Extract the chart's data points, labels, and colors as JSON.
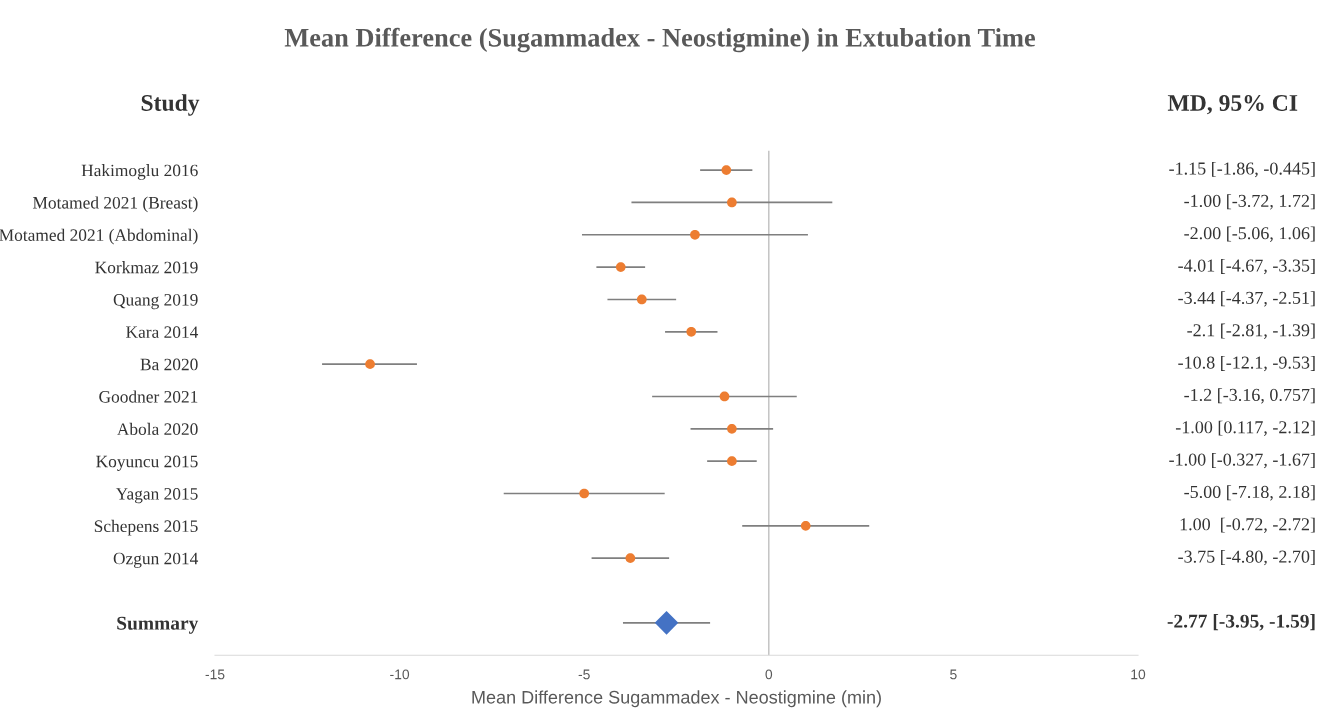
{
  "chart_data": {
    "type": "scatter",
    "orientation": "horizontal",
    "title": "Mean Difference (Sugammadex - Neostigmine) in Extubation Time",
    "xlabel": "Mean Difference Sugammadex - Neostigmine (min)",
    "categories": [
      "Hakimoglu 2016",
      "Motamed 2021 (Breast)",
      "Motamed 2021 (Abdominal)",
      "Korkmaz 2019",
      "Quang 2019",
      "Kara 2014",
      "Ba 2020",
      "Goodner 2021",
      "Abola 2020",
      "Koyuncu 2015",
      "Yagan 2015",
      "Schepens 2015",
      "Ozgun 2014",
      null,
      "Summary"
    ],
    "series": [
      {
        "color": "#ed7d31",
        "marker": "circle",
        "values": [
          -1.15,
          -1.0,
          -2.0,
          -4.01,
          -3.44,
          -2.1,
          -10.8,
          -1.2,
          -1.0,
          -1.0,
          -5.0,
          1.0,
          -3.75,
          null,
          null
        ],
        "errors": [
          [
            -1.86,
            -0.445
          ],
          [
            -3.72,
            1.72
          ],
          [
            -5.06,
            1.06
          ],
          [
            -4.67,
            -3.35
          ],
          [
            -4.37,
            -2.51
          ],
          [
            -2.81,
            -1.39
          ],
          [
            -12.1,
            -9.53
          ],
          [
            -3.16,
            0.757
          ],
          [
            -2.12,
            0.117
          ],
          [
            -1.67,
            -0.327
          ],
          [
            -7.18,
            -2.82
          ],
          [
            -0.72,
            2.72
          ],
          [
            -4.8,
            -2.7
          ],
          null,
          null
        ],
        "value_labels": [
          "-1.15 [-1.86, -0.445]",
          "-1.00 [-3.72, 1.72]",
          "-2.00 [-5.06, 1.06]",
          "-4.01 [-4.67, -3.35]",
          "-3.44 [-4.37, -2.51]",
          "-2.1 [-2.81, -1.39]",
          "-10.8 [-12.1, -9.53]",
          "-1.2 [-3.16, 0.757]",
          "-1.00 [0.117, -2.12]",
          "-1.00 [-0.327, -1.67]",
          "-5.00 [-7.18, 2.18]",
          "1.00  [-0.72, -2.72]",
          "-3.75 [-4.80, -2.70]",
          null,
          null
        ]
      },
      {
        "color": "#4472c4",
        "marker": "diamond",
        "values": [
          null,
          null,
          null,
          null,
          null,
          null,
          null,
          null,
          null,
          null,
          null,
          null,
          null,
          null,
          -2.77
        ],
        "errors": [
          null,
          null,
          null,
          null,
          null,
          null,
          null,
          null,
          null,
          null,
          null,
          null,
          null,
          null,
          [
            -3.95,
            -1.59
          ]
        ]
      }
    ],
    "xlim": [
      -15,
      10
    ],
    "xticks": [
      -15,
      -10,
      -5,
      0,
      5,
      10
    ],
    "ref_lines": [
      {
        "axis": "x",
        "value": 0,
        "color": "#bfbfbf"
      }
    ],
    "annotations": [
      "Study",
      "MD, 95% CI",
      "-2.77 [-3.95, -1.59]"
    ],
    "grid": false,
    "legend": false
  }
}
